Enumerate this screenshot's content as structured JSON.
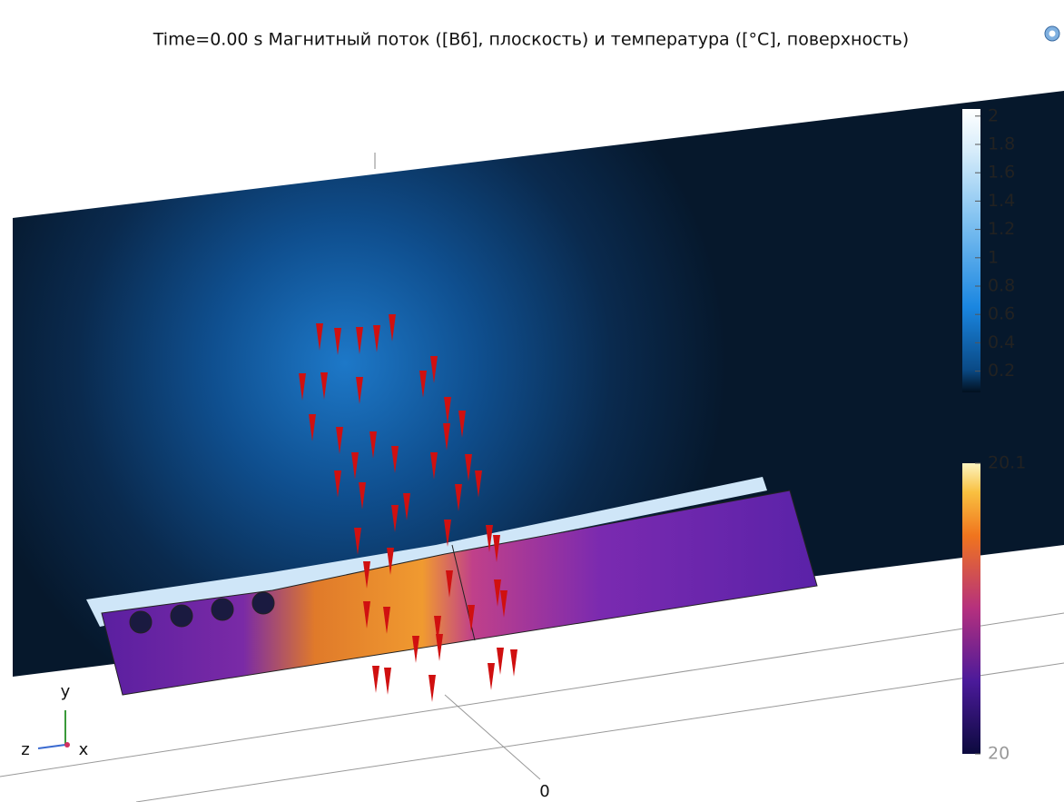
{
  "title": "Time=0.00 s Магнитный поток ([Вб], плоскость) и температура ([°C], поверхность)",
  "colorbars": [
    {
      "lim": [
        0.05,
        2.05
      ],
      "ticks": [
        0.2,
        0.4,
        0.6,
        0.8,
        1,
        1.2,
        1.4,
        1.6,
        1.8,
        2
      ]
    },
    {
      "lim": [
        20,
        20.1
      ],
      "ticks": [
        20,
        20.1
      ]
    }
  ],
  "axes_triad": {
    "y": "y",
    "z": "z",
    "x": "x"
  },
  "origin_label": "0"
}
